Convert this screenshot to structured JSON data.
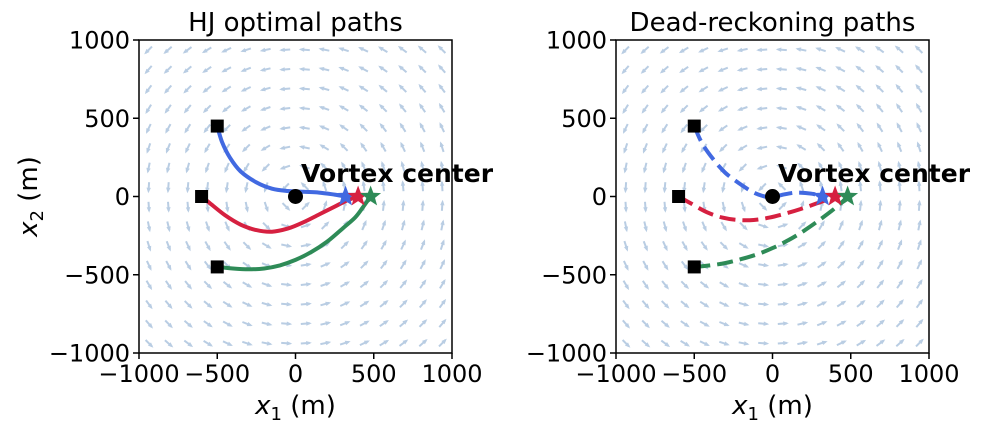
{
  "chart_data": [
    {
      "type": "line",
      "title": "HJ optimal paths",
      "xlabel_main": "x",
      "xlabel_sub": "1",
      "xlabel_unit": " (m)",
      "ylabel_main": "x",
      "ylabel_sub": "2",
      "ylabel_unit": " (m)",
      "xlim": [
        -1000,
        1000
      ],
      "ylim": [
        -1000,
        1000
      ],
      "xticks": [
        -1000,
        -500,
        0,
        500,
        1000
      ],
      "yticks": [
        -1000,
        -500,
        0,
        500,
        1000
      ],
      "xtick_labels": [
        "−1000",
        "−500",
        "0",
        "500",
        "1000"
      ],
      "ytick_labels": [
        "−1000",
        "−500",
        "0",
        "500",
        "1000"
      ],
      "line_style": "solid",
      "vortex_center": [
        0,
        0
      ],
      "annotation": "Vortex center",
      "series": [
        {
          "color": "#4169e1",
          "start": [
            -500,
            450
          ],
          "end": [
            320,
            0
          ],
          "x": [
            -500,
            -470,
            -420,
            -350,
            -250,
            -150,
            -50,
            50,
            150,
            250,
            320
          ],
          "y": [
            450,
            350,
            250,
            160,
            90,
            50,
            35,
            30,
            25,
            12,
            0
          ]
        },
        {
          "color": "#d62040",
          "start": [
            -600,
            0
          ],
          "end": [
            400,
            0
          ],
          "x": [
            -600,
            -550,
            -450,
            -350,
            -250,
            -150,
            -50,
            50,
            150,
            250,
            330,
            400
          ],
          "y": [
            0,
            -40,
            -120,
            -180,
            -215,
            -225,
            -205,
            -165,
            -115,
            -65,
            -25,
            0
          ]
        },
        {
          "color": "#2e8b57",
          "start": [
            -500,
            -450
          ],
          "end": [
            480,
            0
          ],
          "x": [
            -500,
            -400,
            -300,
            -200,
            -100,
            0,
            100,
            200,
            300,
            380,
            430,
            480
          ],
          "y": [
            -450,
            -460,
            -465,
            -460,
            -440,
            -405,
            -355,
            -290,
            -205,
            -135,
            -70,
            0
          ]
        }
      ]
    },
    {
      "type": "line",
      "title": "Dead-reckoning paths",
      "xlabel_main": "x",
      "xlabel_sub": "1",
      "xlabel_unit": " (m)",
      "xlim": [
        -1000,
        1000
      ],
      "ylim": [
        -1000,
        1000
      ],
      "xticks": [
        -1000,
        -500,
        0,
        500,
        1000
      ],
      "yticks": [
        -1000,
        -500,
        0,
        500,
        1000
      ],
      "xtick_labels": [
        "−1000",
        "−500",
        "0",
        "500",
        "1000"
      ],
      "ytick_labels": [
        "−1000",
        "−500",
        "0",
        "500",
        "1000"
      ],
      "line_style": "dashed",
      "vortex_center": [
        0,
        0
      ],
      "annotation": "Vortex center",
      "series": [
        {
          "color": "#4169e1",
          "start": [
            -500,
            450
          ],
          "end": [
            320,
            0
          ],
          "x": [
            -500,
            -450,
            -380,
            -300,
            -200,
            -120,
            -50,
            0,
            60,
            150,
            250,
            320
          ],
          "y": [
            450,
            340,
            240,
            150,
            75,
            25,
            0,
            -5,
            10,
            25,
            18,
            0
          ]
        },
        {
          "color": "#d62040",
          "start": [
            -600,
            0
          ],
          "end": [
            400,
            0
          ],
          "x": [
            -600,
            -520,
            -420,
            -320,
            -220,
            -120,
            -20,
            80,
            180,
            280,
            350,
            400
          ],
          "y": [
            0,
            -45,
            -100,
            -135,
            -150,
            -150,
            -135,
            -110,
            -80,
            -45,
            -20,
            0
          ]
        },
        {
          "color": "#2e8b57",
          "start": [
            -500,
            -450
          ],
          "end": [
            480,
            0
          ],
          "x": [
            -500,
            -400,
            -300,
            -200,
            -100,
            0,
            100,
            200,
            300,
            380,
            440,
            480
          ],
          "y": [
            -450,
            -440,
            -425,
            -400,
            -370,
            -330,
            -280,
            -220,
            -150,
            -90,
            -40,
            0
          ]
        }
      ]
    }
  ],
  "colors": {
    "field_arrows": "#b9cde3",
    "marker": "#000000",
    "axes": "#000000"
  },
  "field": {
    "type": "vortex-quiver",
    "grid_spacing": 125,
    "direction": "counter-clockwise"
  }
}
